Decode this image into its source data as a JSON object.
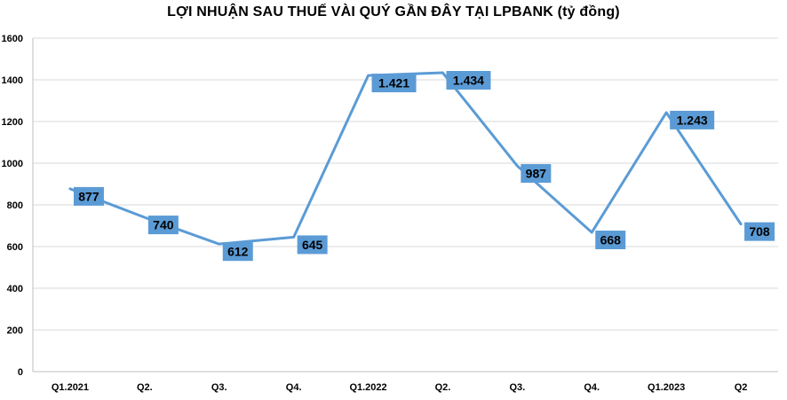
{
  "chart_data": {
    "type": "line",
    "title": "LỢI NHUẬN SAU THUẾ VÀI QUÝ GẦN ĐÂY TẠI LPBANK (tỷ đồng)",
    "categories": [
      "Q1.2021",
      "Q2.",
      "Q3.",
      "Q4.",
      "Q1.2022",
      "Q2.",
      "Q3.",
      "Q4.",
      "Q1.2023",
      "Q2"
    ],
    "series": [
      {
        "values": [
          877,
          740,
          612,
          645,
          1421,
          1434,
          987,
          668,
          1243,
          708
        ],
        "labels": [
          "877",
          "740",
          "612",
          "645",
          "1.421",
          "1.434",
          "987",
          "668",
          "1.243",
          "708"
        ]
      }
    ],
    "ylim": [
      0,
      1600
    ],
    "yticks": [
      0,
      200,
      400,
      600,
      800,
      1000,
      1200,
      1400,
      1600
    ],
    "grid": true,
    "legend": "none",
    "colors": {
      "line": "#5b9bd5",
      "label_bg": "#5b9bd5",
      "grid": "#d9d9d9",
      "axis": "#bfbfbf"
    }
  }
}
